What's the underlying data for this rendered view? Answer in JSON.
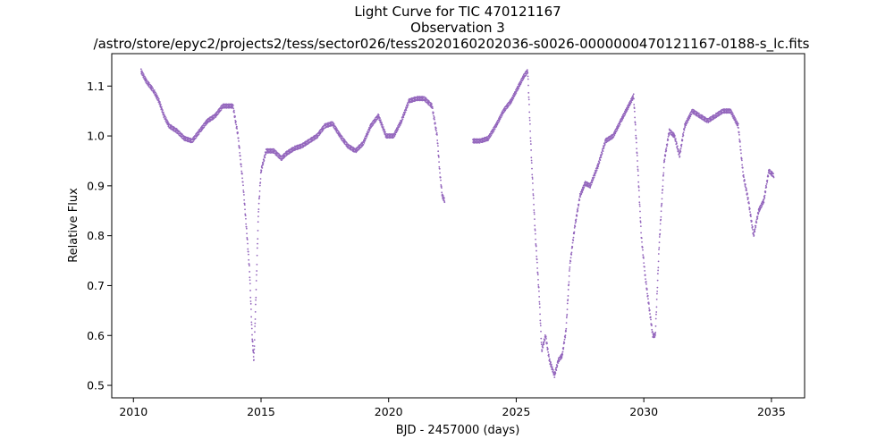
{
  "chart_data": {
    "type": "scatter",
    "title": "Light Curve for TIC 470121167",
    "subtitle": "Observation 3",
    "file_path": "/astro/store/epyc2/projects2/tess/sector026/tess2020160202036-s0026-0000000470121167-0188-s_lc.fits",
    "xlabel": "BJD - 2457000 (days)",
    "ylabel": "Relative Flux",
    "xlim": [
      2009.15,
      2036.3
    ],
    "ylim": [
      0.475,
      1.165
    ],
    "xticks": [
      2010,
      2015,
      2020,
      2025,
      2030,
      2035
    ],
    "yticks": [
      0.5,
      0.6,
      0.7,
      0.8,
      0.9,
      1.0,
      1.1
    ],
    "grid": false,
    "marker_color": "#9467bd",
    "segments": [
      {
        "x": [
          2010.3,
          2010.5,
          2010.8,
          2011.0,
          2011.2,
          2011.4,
          2011.7,
          2012.0,
          2012.3,
          2012.6,
          2012.9,
          2013.2,
          2013.5,
          2013.9,
          2014.1,
          2014.3,
          2014.45,
          2014.55,
          2014.65,
          2014.72,
          2014.8,
          2014.9,
          2015.0,
          2015.2,
          2015.5,
          2015.8,
          2016.0,
          2016.3,
          2016.6,
          2016.9,
          2017.2,
          2017.5,
          2017.8,
          2018.1,
          2018.4,
          2018.7,
          2019.0,
          2019.3,
          2019.6,
          2019.9,
          2020.2,
          2020.5,
          2020.8,
          2021.1,
          2021.4,
          2021.7,
          2021.9,
          2022.0,
          2022.1,
          2022.2
        ],
        "y": [
          1.13,
          1.11,
          1.09,
          1.07,
          1.04,
          1.02,
          1.01,
          0.995,
          0.99,
          1.01,
          1.03,
          1.04,
          1.06,
          1.06,
          1.0,
          0.9,
          0.8,
          0.73,
          0.6,
          0.55,
          0.68,
          0.85,
          0.93,
          0.97,
          0.97,
          0.955,
          0.965,
          0.975,
          0.98,
          0.99,
          1.0,
          1.02,
          1.025,
          1.0,
          0.98,
          0.97,
          0.985,
          1.02,
          1.04,
          1.0,
          1.0,
          1.03,
          1.07,
          1.075,
          1.075,
          1.06,
          1.0,
          0.93,
          0.88,
          0.87
        ]
      },
      {
        "x": [
          2023.3,
          2023.6,
          2023.9,
          2024.2,
          2024.5,
          2024.8,
          2025.1,
          2025.3,
          2025.45,
          2025.6,
          2025.75,
          2025.9,
          2026.0,
          2026.15,
          2026.3,
          2026.5,
          2026.65,
          2026.8,
          2026.95,
          2027.1,
          2027.3,
          2027.5,
          2027.7,
          2027.9,
          2028.2,
          2028.5,
          2028.8,
          2029.1,
          2029.4,
          2029.6,
          2029.75,
          2029.9,
          2030.05,
          2030.2,
          2030.35,
          2030.45,
          2030.6,
          2030.8,
          2031.0,
          2031.2,
          2031.4,
          2031.6,
          2031.9,
          2032.2,
          2032.5,
          2032.8,
          2033.1,
          2033.4,
          2033.7,
          2033.9,
          2034.1,
          2034.3,
          2034.5,
          2034.7,
          2034.9,
          2035.1
        ],
        "y": [
          0.99,
          0.99,
          0.995,
          1.02,
          1.05,
          1.07,
          1.1,
          1.12,
          1.13,
          0.95,
          0.8,
          0.68,
          0.57,
          0.6,
          0.55,
          0.52,
          0.55,
          0.56,
          0.61,
          0.74,
          0.82,
          0.88,
          0.905,
          0.9,
          0.94,
          0.99,
          1.0,
          1.03,
          1.06,
          1.08,
          0.95,
          0.8,
          0.72,
          0.66,
          0.6,
          0.6,
          0.78,
          0.95,
          1.01,
          1.0,
          0.96,
          1.02,
          1.05,
          1.04,
          1.03,
          1.04,
          1.05,
          1.05,
          1.02,
          0.92,
          0.87,
          0.8,
          0.85,
          0.87,
          0.93,
          0.92
        ]
      }
    ]
  }
}
